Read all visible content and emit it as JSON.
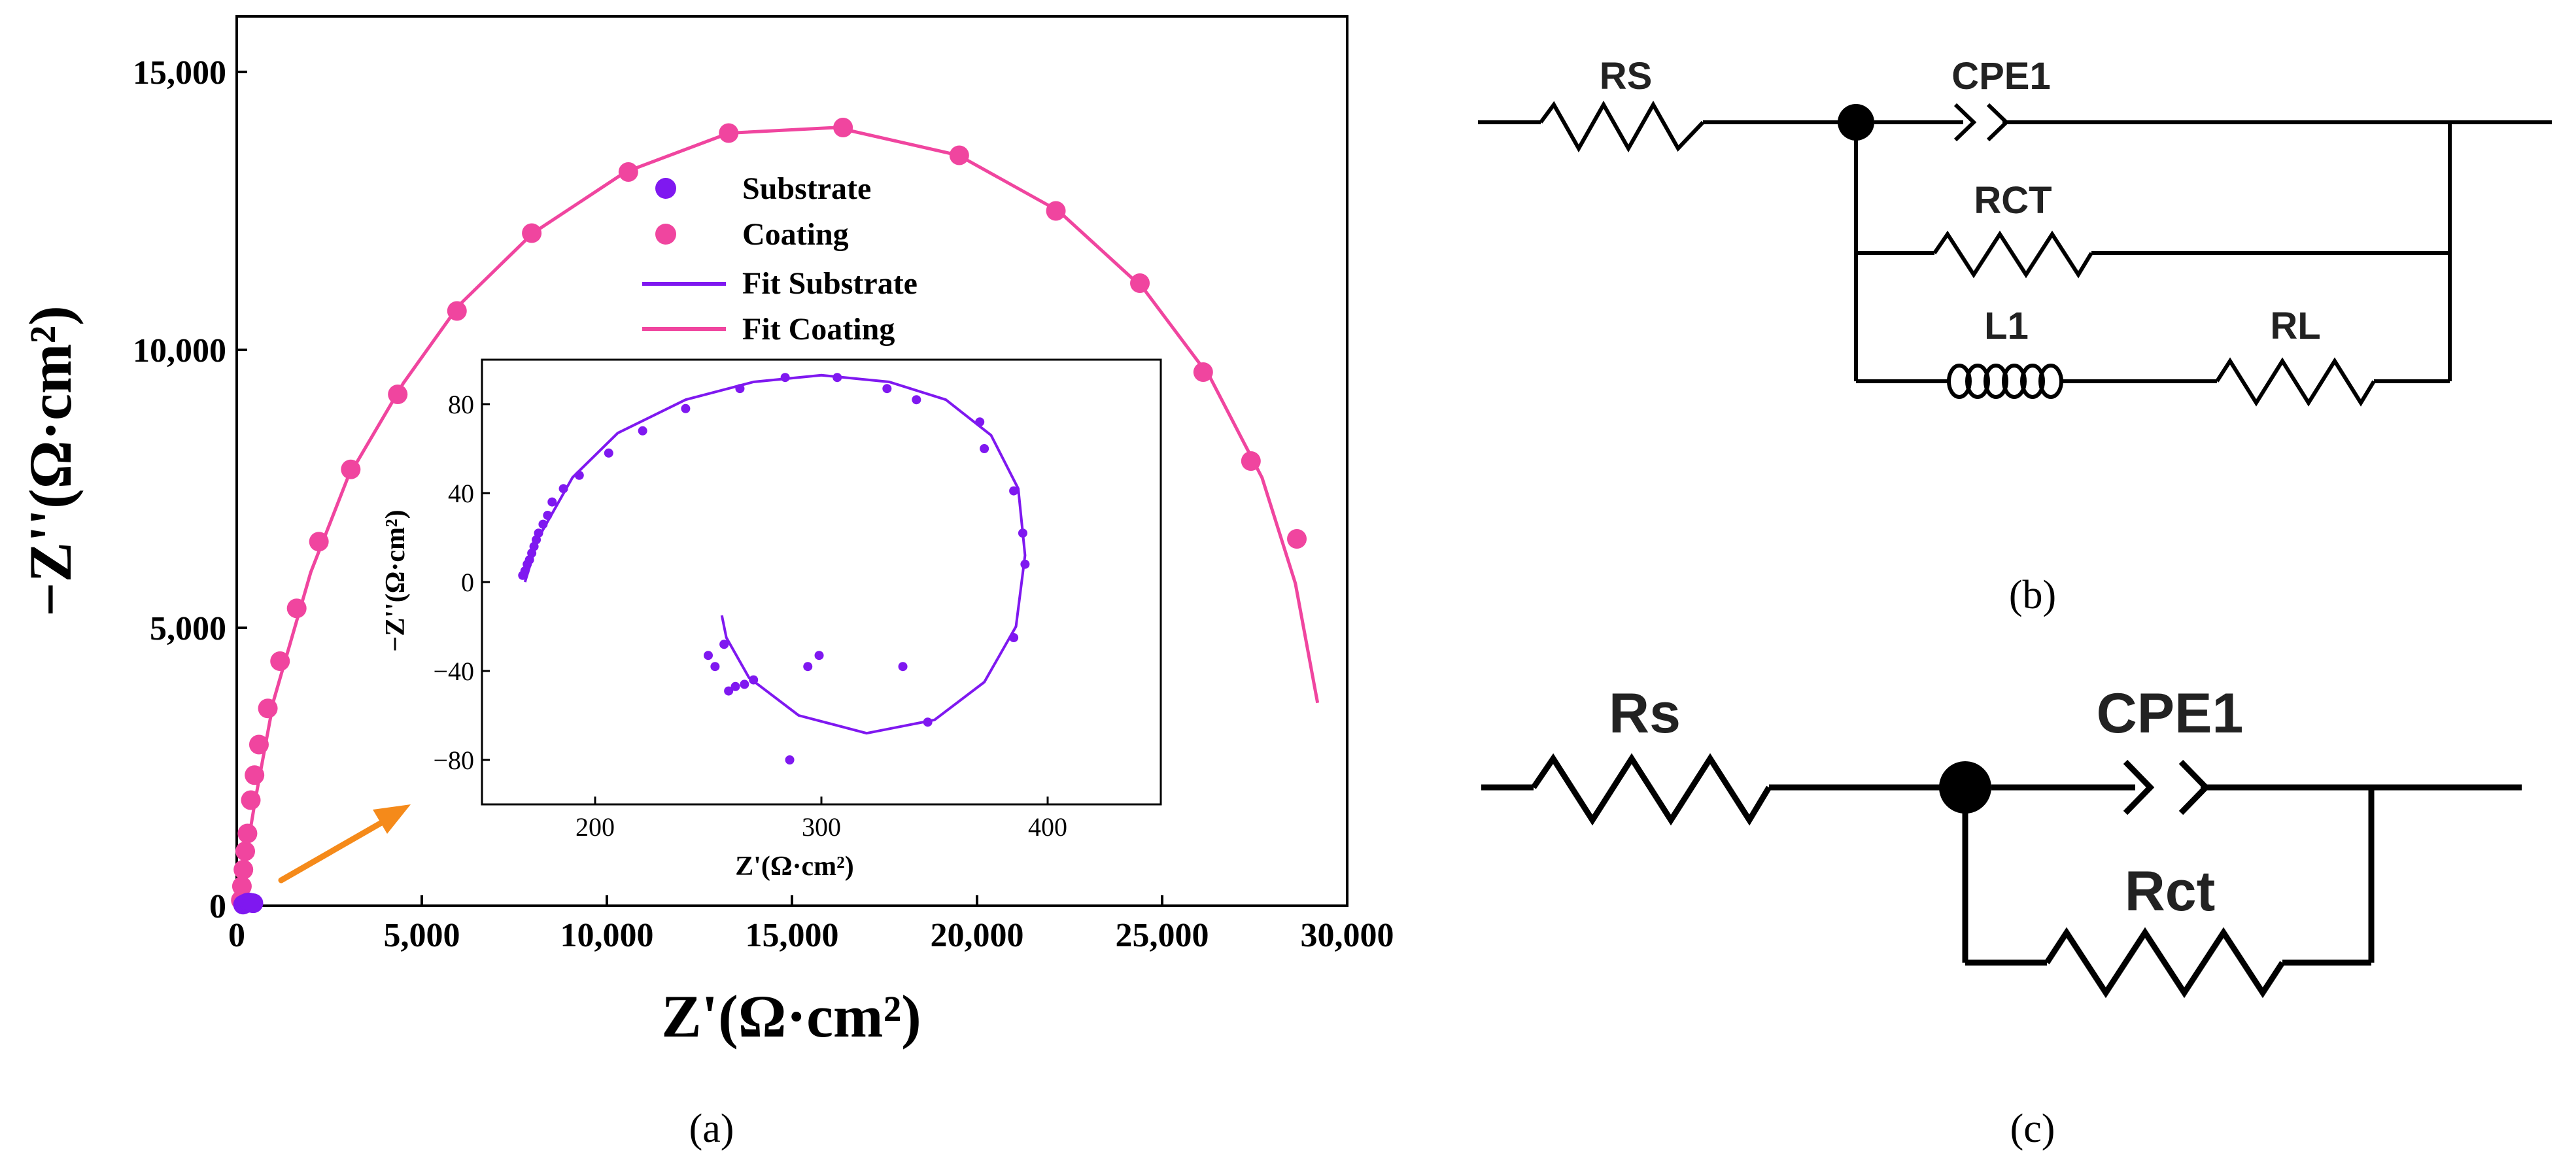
{
  "colors": {
    "substrate": "#7f18f0",
    "coating": "#f0459f",
    "arrow": "#f58a1a",
    "circuit": "#000000"
  },
  "chart_data": [
    {
      "type": "scatter",
      "panel_label": "(a)",
      "xlabel": "Z'(Ω·cm²)",
      "ylabel": "−Z''(Ω·cm²)",
      "xlim": [
        0,
        30000
      ],
      "ylim": [
        0,
        16000
      ],
      "x_ticks": [
        0,
        5000,
        10000,
        15000,
        20000,
        25000,
        30000
      ],
      "x_tick_labels": [
        "0",
        "5,000",
        "10,000",
        "15,000",
        "20,000",
        "25,000",
        "30,000"
      ],
      "y_ticks": [
        0,
        5000,
        10000,
        15000
      ],
      "y_tick_labels": [
        "0",
        "5,000",
        "10,000",
        "15,000"
      ],
      "legend": {
        "position": "upper-middle",
        "entries": [
          {
            "label": "Substrate",
            "kind": "marker",
            "series": "substrate"
          },
          {
            "label": "Coating",
            "kind": "marker",
            "series": "coating"
          },
          {
            "label": "Fit Substrate",
            "kind": "line",
            "series": "substrate"
          },
          {
            "label": "Fit Coating",
            "kind": "line",
            "series": "coating"
          }
        ]
      },
      "series": [
        {
          "name": "Coating",
          "x": [
            110,
            140,
            180,
            230,
            290,
            380,
            480,
            600,
            840,
            1170,
            1620,
            2220,
            3080,
            4350,
            5950,
            7970,
            10580,
            13290,
            16380,
            19520,
            22130,
            24400,
            26110,
            27400,
            28640
          ],
          "y": [
            100,
            350,
            650,
            980,
            1300,
            1900,
            2350,
            2900,
            3550,
            4400,
            5350,
            6550,
            7850,
            9200,
            10700,
            12100,
            13200,
            13900,
            14000,
            13500,
            12500,
            11200,
            9600,
            8000,
            6600
          ]
        },
        {
          "name": "Substrate",
          "x": [
            170,
            230,
            280,
            330,
            400,
            450
          ],
          "y": [
            20,
            40,
            55,
            60,
            50,
            45
          ]
        },
        {
          "name": "Fit Coating",
          "kind": "line",
          "x": [
            0,
            200,
            500,
            1000,
            2000,
            3000,
            4500,
            6000,
            8000,
            10500,
            13300,
            16200,
            19500,
            22200,
            24500,
            26300,
            27700,
            28600,
            29200
          ],
          "y": [
            0,
            700,
            1900,
            3700,
            6000,
            7700,
            9400,
            10800,
            12100,
            13200,
            13900,
            14000,
            13500,
            12500,
            11100,
            9500,
            7700,
            5800,
            3650
          ]
        }
      ]
    },
    {
      "type": "scatter",
      "name": "inset",
      "xlabel": "Z'(Ω·cm²)",
      "ylabel": "−Z''(Ω·cm²)",
      "xlim": [
        150,
        450
      ],
      "ylim": [
        -100,
        100
      ],
      "x_ticks": [
        200,
        300,
        400
      ],
      "x_tick_labels": [
        "200",
        "300",
        "400"
      ],
      "y_ticks": [
        -80,
        -40,
        0,
        40,
        80
      ],
      "y_tick_labels": [
        "−80",
        "−40",
        "0",
        "40",
        "80"
      ],
      "series": [
        {
          "name": "Substrate",
          "x": [
            168,
            169,
            170,
            171,
            172,
            173,
            174,
            175,
            177,
            179,
            181,
            186,
            193,
            206,
            221,
            240,
            264,
            284,
            307,
            329,
            342,
            370,
            372,
            385,
            389,
            390,
            385,
            347,
            336,
            294,
            299,
            286,
            270,
            266,
            262,
            259,
            257,
            257,
            250,
            253
          ],
          "y": [
            3,
            5,
            8,
            10,
            13,
            16,
            19,
            22,
            26,
            30,
            36,
            42,
            48,
            58,
            68,
            78,
            87,
            92,
            92,
            87,
            82,
            72,
            60,
            41,
            22,
            8,
            -25,
            -63,
            -38,
            -38,
            -33,
            -80,
            -44,
            -46,
            -47,
            -49,
            -28,
            -28,
            -33,
            -38
          ]
        },
        {
          "name": "Fit Substrate",
          "kind": "line",
          "x": [
            169,
            175,
            190,
            210,
            240,
            270,
            300,
            330,
            355,
            375,
            387,
            390,
            386,
            372,
            350,
            320,
            290,
            268,
            258,
            256
          ],
          "y": [
            0,
            20,
            47,
            67,
            82,
            90,
            93,
            90,
            82,
            66,
            42,
            12,
            -20,
            -45,
            -62,
            -68,
            -60,
            -43,
            -25,
            -15
          ]
        }
      ]
    }
  ],
  "circuit_b": {
    "panel_label": "(b)",
    "labels": {
      "rs": "RS",
      "cpe": "CPE1",
      "rct": "RCT",
      "l1": "L1",
      "rl": "RL"
    }
  },
  "circuit_c": {
    "panel_label": "(c)",
    "labels": {
      "rs": "Rs",
      "cpe": "CPE1",
      "rct": "Rct"
    }
  }
}
